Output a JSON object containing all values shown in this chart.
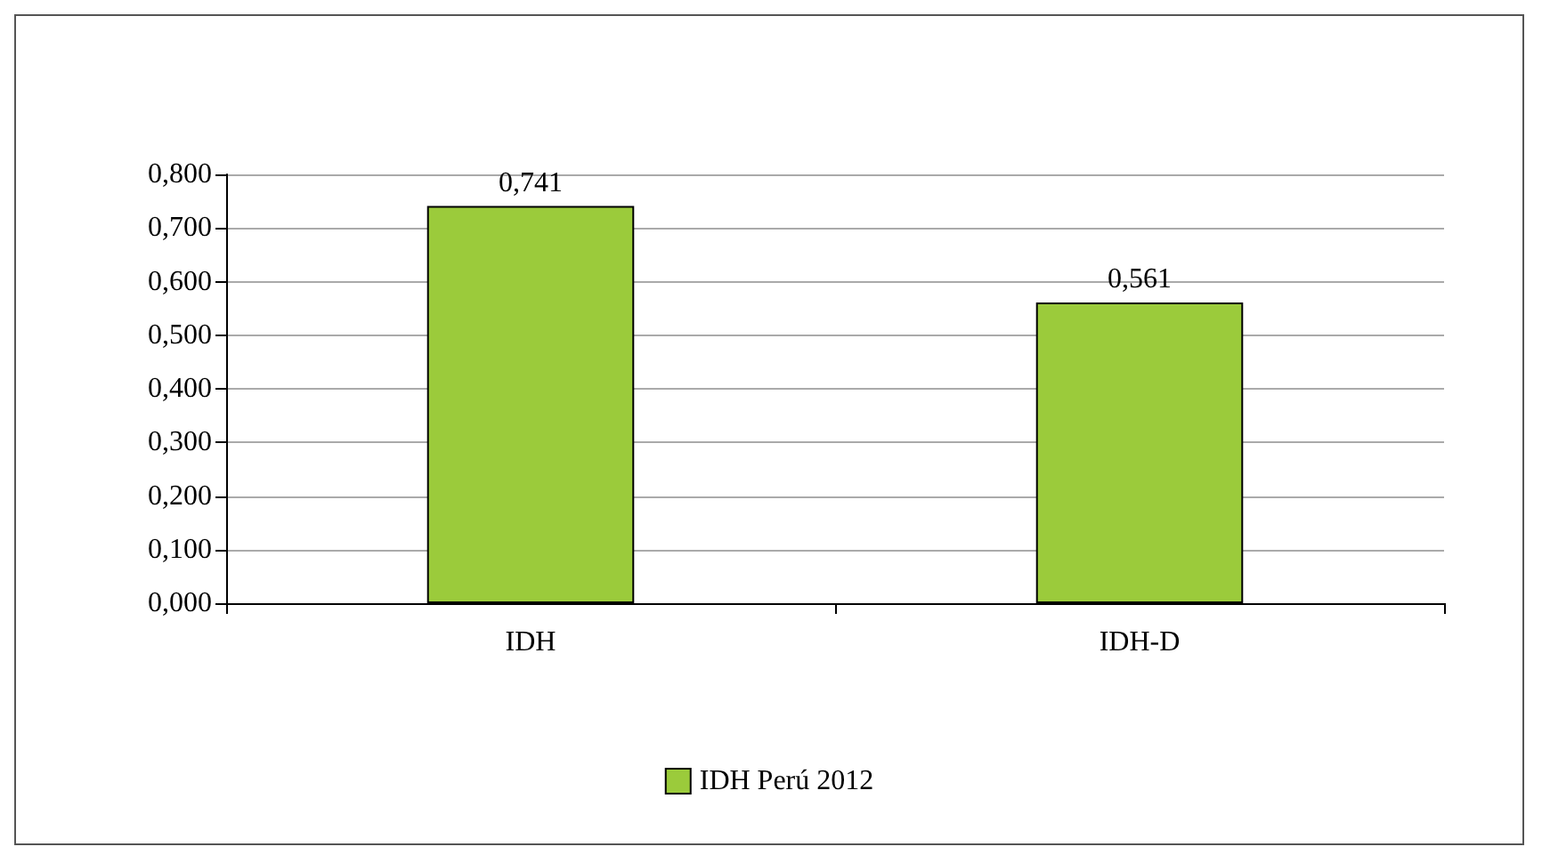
{
  "chart_data": {
    "type": "bar",
    "categories": [
      "IDH",
      "IDH-D"
    ],
    "series": [
      {
        "name": "IDH Perú 2012",
        "color": "#9bcb3b",
        "values": [
          0.741,
          0.561
        ],
        "value_labels": [
          "0,741",
          "0,561"
        ]
      }
    ],
    "ylim": [
      0,
      0.8
    ],
    "yticks": [
      {
        "value": 0,
        "label": "0,000"
      },
      {
        "value": 0.1,
        "label": "0,100"
      },
      {
        "value": 0.2,
        "label": "0,200"
      },
      {
        "value": 0.3,
        "label": "0,300"
      },
      {
        "value": 0.4,
        "label": "0,400"
      },
      {
        "value": 0.5,
        "label": "0,500"
      },
      {
        "value": 0.6,
        "label": "0,600"
      },
      {
        "value": 0.7,
        "label": "0,700"
      },
      {
        "value": 0.8,
        "label": "0,800"
      }
    ],
    "grid": "y",
    "legend": "bottom"
  }
}
